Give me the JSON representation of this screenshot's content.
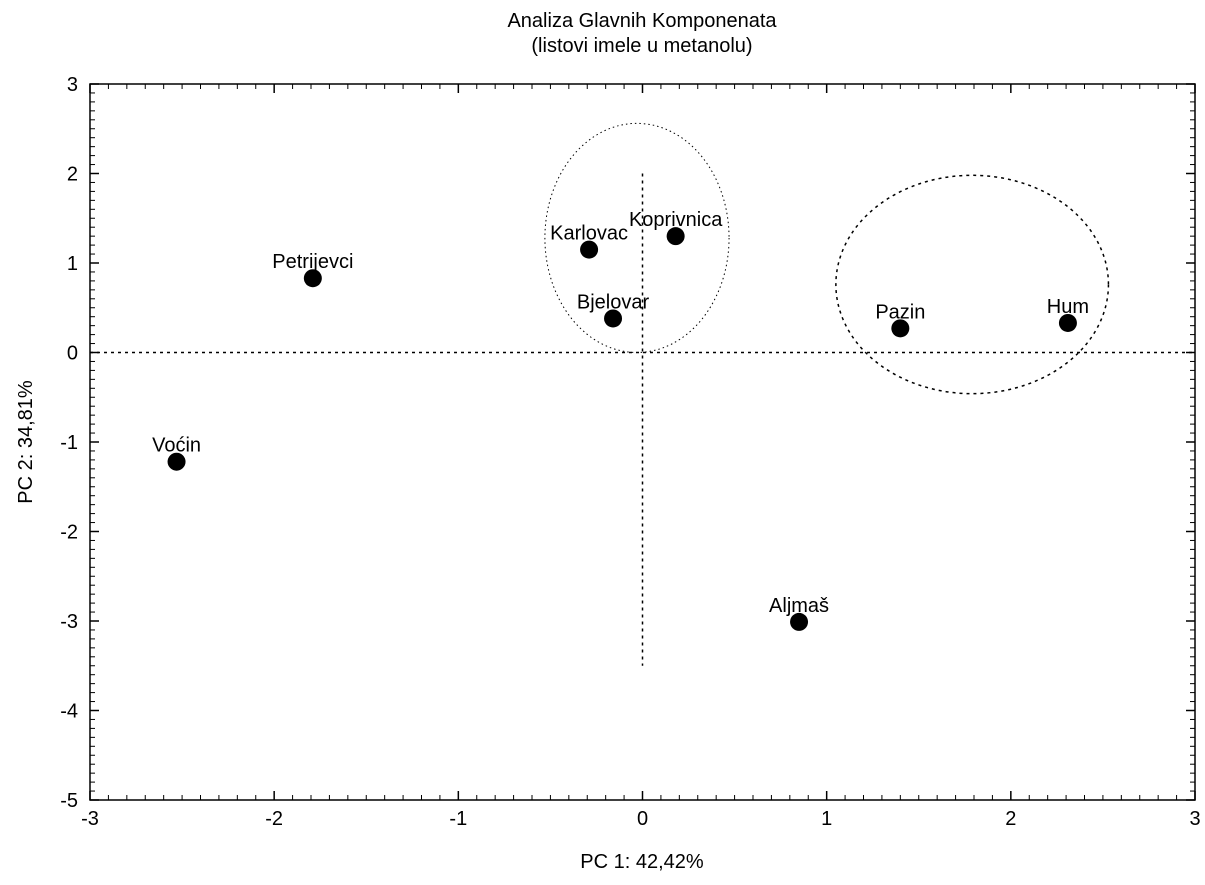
{
  "chart_data": {
    "type": "scatter",
    "title": "Analiza Glavnih Komponenata",
    "subtitle": "(listovi imele  u metanolu)",
    "xlabel": "PC 1: 42,42%",
    "ylabel": "PC 2: 34,81%",
    "xlim": [
      -3,
      3
    ],
    "ylim": [
      -5,
      3
    ],
    "xticks": [
      "-3",
      "-2",
      "-1",
      "0",
      "1",
      "2",
      "3"
    ],
    "yticks": [
      "3",
      "2",
      "1",
      "0",
      "-1",
      "-2",
      "-3",
      "-4",
      "-5"
    ],
    "grid": false,
    "points": [
      {
        "label": "Voćin",
        "x": -2.53,
        "y": -1.22
      },
      {
        "label": "Petrijevci",
        "x": -1.79,
        "y": 0.83
      },
      {
        "label": "Karlovac",
        "x": -0.29,
        "y": 1.15
      },
      {
        "label": "Koprivnica",
        "x": 0.18,
        "y": 1.3
      },
      {
        "label": "Bjelovar",
        "x": -0.16,
        "y": 0.38
      },
      {
        "label": "Pazin",
        "x": 1.4,
        "y": 0.27
      },
      {
        "label": "Hum",
        "x": 2.31,
        "y": 0.33
      },
      {
        "label": "Aljmaš",
        "x": 0.85,
        "y": -3.01
      }
    ],
    "reference_lines": [
      {
        "orientation": "horizontal",
        "value": 0,
        "style": "dotted"
      },
      {
        "orientation": "vertical",
        "value": 0,
        "from": -3.5,
        "to": 2.0,
        "style": "dotted"
      }
    ],
    "ellipses": [
      {
        "cx": -0.03,
        "cy": 1.28,
        "rx": 0.5,
        "ry": 1.28,
        "style": "fine-dotted"
      },
      {
        "cx": 1.79,
        "cy": 0.76,
        "rx": 0.74,
        "ry": 1.22,
        "style": "dotted"
      }
    ]
  }
}
